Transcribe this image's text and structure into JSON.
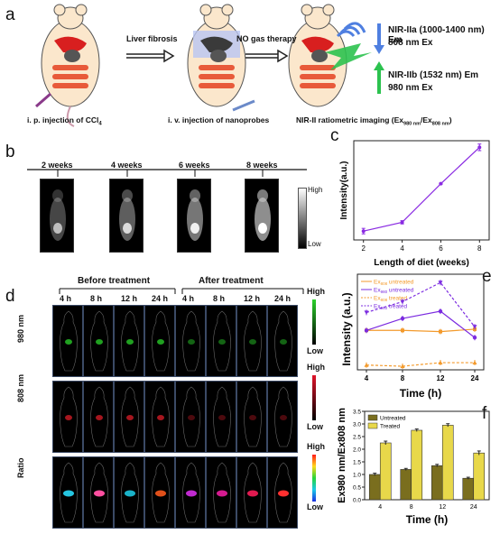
{
  "panels": {
    "a": "a",
    "b": "b",
    "c": "c",
    "d": "d",
    "e": "e",
    "f": "f"
  },
  "panel_a": {
    "step1_label": "Liver fibrosis",
    "step2_label": "NO gas therapy",
    "inj1": "i. p. injection of CCl",
    "inj1_sub": "4",
    "inj2": "i. v. injection of nanoprobes",
    "imaging": "NIR-II ratiometric imaging (Ex",
    "imaging_sub1": "980 nm",
    "imaging_mid": "/Ex",
    "imaging_sub2": "808 nm",
    "imaging_end": ")",
    "nir2a_line1": "NIR-IIa (1000-1400 nm) Em",
    "nir2a_line2": "808 nm Ex",
    "nir2b_line1": "NIR-IIb (1532 nm) Em",
    "nir2b_line2": "980 nm Ex",
    "colors": {
      "blue_beam": "#4f7fe0",
      "green_beam": "#2cc24f",
      "liver": "#d81f1f"
    }
  },
  "panel_b": {
    "weeks": [
      "2 weeks",
      "4 weeks",
      "6 weeks",
      "8 weeks"
    ],
    "scale_high": "High",
    "scale_low": "Low"
  },
  "panel_d": {
    "before": "Before treatment",
    "after": "After treatment",
    "times": [
      "4 h",
      "8 h",
      "12 h",
      "24 h",
      "4 h",
      "8 h",
      "12 h",
      "24 h"
    ],
    "rows": [
      "980 nm",
      "808 nm",
      "Ratio"
    ],
    "scale_high": "High",
    "scale_low": "Low"
  },
  "chart_data": [
    {
      "id": "c",
      "type": "line",
      "x": [
        2,
        4,
        6,
        8
      ],
      "y": [
        0.8,
        1.6,
        5.1,
        8.4
      ],
      "yerr": [
        0.25,
        0.15,
        0.05,
        0.3
      ],
      "xlabel": "Length of diet (weeks)",
      "ylabel": "Intensity(a.u.)",
      "xticks": [
        "2",
        "4",
        "6",
        "8"
      ],
      "color": "#8a2be2"
    },
    {
      "id": "e",
      "type": "line",
      "x": [
        4,
        8,
        12,
        24
      ],
      "xticks": [
        "4",
        "8",
        "12",
        "24"
      ],
      "xlabel": "Time (h)",
      "ylabel": "Intensity (a.u.)",
      "series": [
        {
          "name": "Ex808 untreated",
          "sub": "808",
          "base": "Ex",
          "tail": " untreated",
          "values": [
            3.3,
            3.3,
            3.2,
            3.4
          ],
          "color": "#f39a2c",
          "dash": false,
          "marker": "star"
        },
        {
          "name": "Ex980 untreated",
          "sub": "980",
          "base": "Ex",
          "tail": " untreated",
          "values": [
            3.3,
            4.3,
            4.9,
            2.7
          ],
          "color": "#7b2be0",
          "dash": false,
          "marker": "circle"
        },
        {
          "name": "Ex808 treated",
          "sub": "808",
          "base": "Ex",
          "tail": " treated",
          "values": [
            0.4,
            0.3,
            0.6,
            0.6
          ],
          "color": "#f39a2c",
          "dash": true,
          "marker": "triangle"
        },
        {
          "name": "Ex980 treated",
          "sub": "980",
          "base": "Ex",
          "tail": " treated",
          "values": [
            4.8,
            5.7,
            7.3,
            3.6
          ],
          "color": "#7b2be0",
          "dash": true,
          "marker": "tri-down"
        }
      ],
      "ylim": [
        0,
        8
      ]
    },
    {
      "id": "f",
      "type": "bar",
      "categories": [
        "4",
        "8",
        "12",
        "24"
      ],
      "series": [
        {
          "name": "Untreated",
          "values": [
            1.0,
            1.2,
            1.35,
            0.85
          ],
          "err": [
            0.05,
            0.04,
            0.05,
            0.04
          ],
          "color": "#7a6e1e"
        },
        {
          "name": "Treated",
          "values": [
            2.25,
            2.75,
            2.95,
            1.85
          ],
          "err": [
            0.07,
            0.05,
            0.06,
            0.08
          ],
          "color": "#e8d84a"
        }
      ],
      "xlabel": "Time (h)",
      "ylabel": "Ex980 nm/Ex808 nm",
      "ylim": [
        0,
        3.5
      ],
      "yticks": [
        "0.0",
        "0.5",
        "1.0",
        "1.5",
        "2.0",
        "2.5",
        "3.0",
        "3.5"
      ]
    }
  ]
}
